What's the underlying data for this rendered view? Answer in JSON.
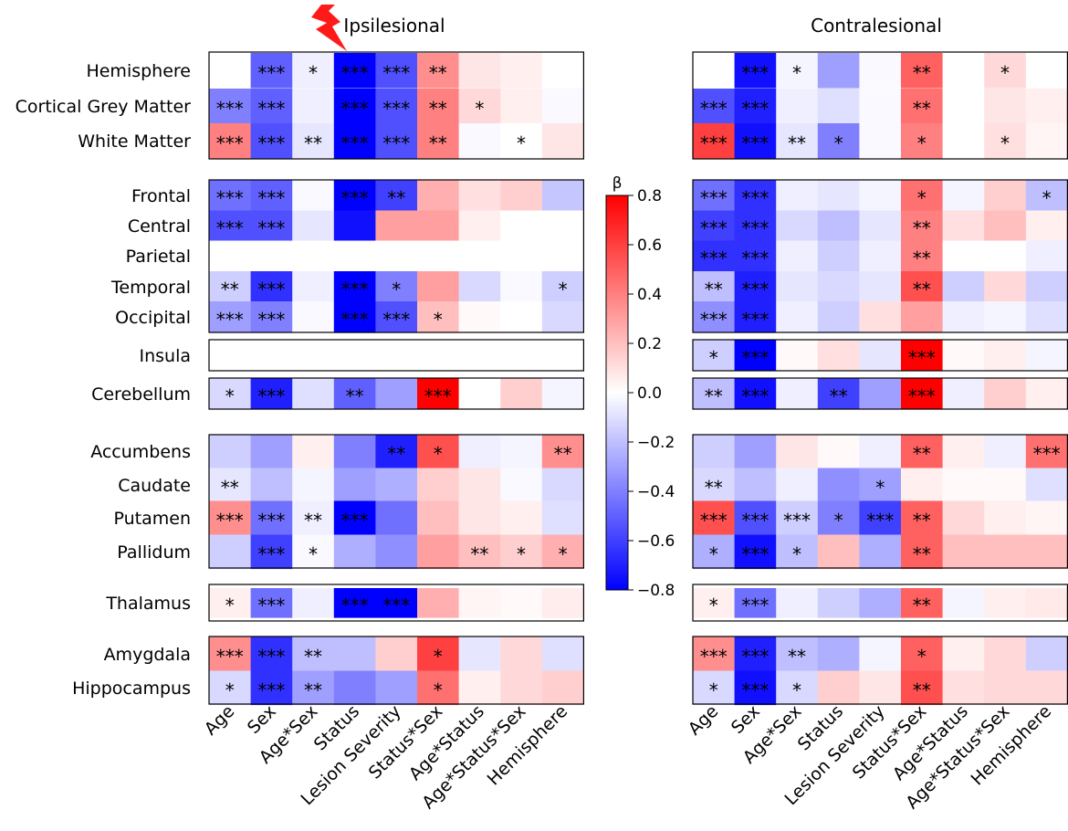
{
  "chart_data": {
    "type": "heatmap",
    "colorbar": {
      "label": "β",
      "min": -0.8,
      "max": 0.8,
      "ticks": [
        0.8,
        0.6,
        0.4,
        0.2,
        0.0,
        -0.2,
        -0.4,
        -0.6,
        -0.8
      ],
      "tick_labels": [
        "0.8",
        "0.6",
        "0.4",
        "0.2",
        "0.0",
        "−0.2",
        "−0.4",
        "−0.6",
        "−0.8"
      ]
    },
    "columns": [
      "Age",
      "Sex",
      "Age*Sex",
      "Status",
      "Lesion Severity",
      "Status*Sex",
      "Age*Status",
      "Age*Status*Sex",
      "Hemisphere"
    ],
    "rows": [
      "Hemisphere",
      "Cortical Grey Matter",
      "White Matter",
      "Frontal",
      "Central",
      "Parietal",
      "Temporal",
      "Occipital",
      "Insula",
      "Cerebellum",
      "Accumbens",
      "Caudate",
      "Putamen",
      "Pallidum",
      "Thalamus",
      "Amygdala",
      "Hippocampus"
    ],
    "row_groups": [
      [
        "Hemisphere",
        "Cortical Grey Matter",
        "White Matter"
      ],
      [
        "Frontal",
        "Central",
        "Parietal",
        "Temporal",
        "Occipital"
      ],
      [
        "Insula"
      ],
      [
        "Cerebellum"
      ],
      [
        "Accumbens",
        "Caudate",
        "Putamen",
        "Pallidum"
      ],
      [
        "Thalamus"
      ],
      [
        "Amygdala",
        "Hippocampus"
      ]
    ],
    "panels": [
      {
        "title": "Ipsilesional",
        "marker": "lesion-bolt",
        "values": [
          [
            0.0,
            -0.5,
            -0.05,
            -0.8,
            -0.55,
            0.35,
            0.08,
            0.05,
            0.0
          ],
          [
            -0.4,
            -0.5,
            -0.05,
            -0.8,
            -0.55,
            0.4,
            0.12,
            0.05,
            -0.02
          ],
          [
            0.4,
            -0.55,
            -0.08,
            -0.85,
            -0.55,
            0.4,
            -0.02,
            0.0,
            0.08
          ],
          [
            -0.45,
            -0.5,
            -0.02,
            -0.8,
            -0.6,
            0.25,
            0.1,
            0.15,
            -0.18
          ],
          [
            -0.55,
            -0.55,
            -0.08,
            -0.75,
            0.3,
            0.3,
            0.05,
            0.0,
            0.0
          ],
          [
            0.0,
            0.0,
            0.0,
            0.0,
            0.0,
            0.0,
            0.0,
            0.0,
            0.0
          ],
          [
            -0.15,
            -0.65,
            -0.05,
            -0.85,
            -0.4,
            0.3,
            -0.12,
            -0.02,
            -0.15
          ],
          [
            -0.3,
            -0.4,
            -0.02,
            -0.85,
            -0.55,
            0.2,
            0.02,
            0.0,
            -0.12
          ],
          [
            0.0,
            0.0,
            0.0,
            0.0,
            0.0,
            0.0,
            0.0,
            0.0,
            0.0
          ],
          [
            -0.12,
            -0.7,
            -0.1,
            -0.5,
            -0.3,
            0.85,
            0.0,
            0.15,
            -0.03
          ],
          [
            -0.15,
            -0.3,
            0.05,
            -0.4,
            -0.7,
            0.55,
            -0.05,
            -0.03,
            0.35
          ],
          [
            -0.08,
            -0.2,
            -0.03,
            -0.3,
            -0.25,
            0.15,
            0.08,
            -0.02,
            -0.12
          ],
          [
            0.35,
            -0.45,
            -0.05,
            -0.85,
            -0.45,
            0.2,
            0.08,
            0.05,
            -0.1
          ],
          [
            -0.15,
            -0.6,
            -0.02,
            -0.25,
            -0.35,
            0.3,
            0.2,
            0.15,
            0.25
          ],
          [
            0.05,
            -0.45,
            -0.05,
            -0.85,
            -0.8,
            0.25,
            0.03,
            0.02,
            0.06
          ],
          [
            0.35,
            -0.65,
            -0.2,
            -0.2,
            0.15,
            0.6,
            -0.08,
            0.12,
            -0.1
          ],
          [
            -0.12,
            -0.65,
            -0.3,
            -0.4,
            -0.3,
            0.45,
            0.05,
            0.12,
            0.15
          ]
        ],
        "stars": [
          [
            "",
            "***",
            "*",
            "***",
            "***",
            "**",
            "",
            "",
            ""
          ],
          [
            "***",
            "***",
            "",
            "***",
            "***",
            "**",
            "*",
            "",
            ""
          ],
          [
            "***",
            "***",
            "**",
            "***",
            "***",
            "**",
            "",
            "*",
            ""
          ],
          [
            "***",
            "***",
            "",
            "***",
            "**",
            "",
            "",
            "",
            ""
          ],
          [
            "***",
            "***",
            "",
            "",
            "",
            "",
            "",
            "",
            ""
          ],
          [
            "",
            "",
            "",
            "",
            "",
            "",
            "",
            "",
            ""
          ],
          [
            "**",
            "***",
            "",
            "***",
            "*",
            "",
            "",
            "",
            "*"
          ],
          [
            "***",
            "***",
            "",
            "***",
            "***",
            "*",
            "",
            "",
            ""
          ],
          [
            "",
            "",
            "",
            "",
            "",
            "",
            "",
            "",
            ""
          ],
          [
            "*",
            "***",
            "",
            "**",
            "",
            "***",
            "",
            "",
            ""
          ],
          [
            "",
            "",
            "",
            "",
            "**",
            "*",
            "",
            "",
            "**"
          ],
          [
            "**",
            "",
            "",
            "",
            "",
            "",
            "",
            "",
            ""
          ],
          [
            "***",
            "***",
            "**",
            "***",
            "",
            "",
            "",
            "",
            ""
          ],
          [
            "",
            "***",
            "*",
            "",
            "",
            "",
            "**",
            "*",
            "*"
          ],
          [
            "*",
            "***",
            "",
            "***",
            "***",
            "",
            "",
            "",
            ""
          ],
          [
            "***",
            "***",
            "**",
            "",
            "",
            "*",
            "",
            "",
            ""
          ],
          [
            "*",
            "***",
            "**",
            "",
            "",
            "*",
            "",
            "",
            ""
          ]
        ]
      },
      {
        "title": "Contralesional",
        "values": [
          [
            0.0,
            -0.75,
            -0.03,
            -0.3,
            -0.02,
            0.5,
            0.0,
            0.12,
            0.0
          ],
          [
            -0.55,
            -0.7,
            -0.05,
            -0.1,
            -0.02,
            0.45,
            0.0,
            0.08,
            0.05
          ],
          [
            0.6,
            -0.75,
            -0.08,
            -0.4,
            -0.02,
            0.4,
            0.0,
            0.1,
            0.03
          ],
          [
            -0.45,
            -0.65,
            -0.05,
            -0.08,
            -0.03,
            0.45,
            -0.03,
            0.15,
            -0.2
          ],
          [
            -0.6,
            -0.65,
            -0.12,
            -0.2,
            -0.08,
            0.4,
            0.1,
            0.2,
            0.05
          ],
          [
            -0.65,
            -0.65,
            -0.05,
            -0.15,
            -0.05,
            0.4,
            0.0,
            0.0,
            -0.05
          ],
          [
            -0.2,
            -0.7,
            -0.08,
            -0.12,
            -0.08,
            0.55,
            -0.15,
            0.12,
            -0.15
          ],
          [
            -0.35,
            -0.7,
            -0.05,
            -0.15,
            0.1,
            0.3,
            -0.05,
            -0.03,
            -0.1
          ],
          [
            -0.15,
            -0.8,
            0.02,
            0.1,
            -0.08,
            0.95,
            0.02,
            0.05,
            -0.03
          ],
          [
            -0.2,
            -0.75,
            -0.05,
            -0.6,
            -0.3,
            0.8,
            -0.05,
            0.15,
            0.05
          ],
          [
            -0.15,
            -0.3,
            0.08,
            0.02,
            -0.05,
            0.5,
            0.05,
            -0.05,
            0.45
          ],
          [
            -0.12,
            -0.2,
            -0.05,
            -0.35,
            -0.3,
            0.05,
            0.02,
            0.02,
            -0.1
          ],
          [
            0.55,
            -0.55,
            -0.15,
            -0.4,
            -0.6,
            0.5,
            0.12,
            0.05,
            0.03
          ],
          [
            -0.25,
            -0.75,
            -0.2,
            0.2,
            -0.25,
            0.5,
            0.2,
            0.2,
            0.2
          ],
          [
            0.05,
            -0.45,
            -0.05,
            -0.15,
            -0.25,
            0.5,
            -0.03,
            0.05,
            0.07
          ],
          [
            0.35,
            -0.7,
            -0.2,
            -0.25,
            -0.03,
            0.5,
            0.05,
            0.12,
            -0.15
          ],
          [
            -0.12,
            -0.75,
            -0.12,
            0.15,
            0.08,
            0.55,
            0.1,
            0.12,
            0.12
          ]
        ],
        "stars": [
          [
            "",
            "***",
            "*",
            "",
            "",
            "**",
            "",
            "*",
            ""
          ],
          [
            "***",
            "***",
            "",
            "",
            "",
            "**",
            "",
            "",
            ""
          ],
          [
            "***",
            "***",
            "**",
            "*",
            "",
            "*",
            "",
            "*",
            ""
          ],
          [
            "***",
            "***",
            "",
            "",
            "",
            "*",
            "",
            "",
            "*"
          ],
          [
            "***",
            "***",
            "",
            "",
            "",
            "**",
            "",
            "",
            ""
          ],
          [
            "***",
            "***",
            "",
            "",
            "",
            "**",
            "",
            "",
            ""
          ],
          [
            "**",
            "***",
            "",
            "",
            "",
            "**",
            "",
            "",
            ""
          ],
          [
            "***",
            "***",
            "",
            "",
            "",
            "",
            "",
            "",
            ""
          ],
          [
            "*",
            "***",
            "",
            "",
            "",
            "***",
            "",
            "",
            ""
          ],
          [
            "**",
            "***",
            "",
            "**",
            "",
            "***",
            "",
            "",
            ""
          ],
          [
            "",
            "",
            "",
            "",
            "",
            "**",
            "",
            "",
            "***"
          ],
          [
            "**",
            "",
            "",
            "",
            "*",
            "",
            "",
            "",
            ""
          ],
          [
            "***",
            "***",
            "***",
            "*",
            "***",
            "**",
            "",
            "",
            ""
          ],
          [
            "*",
            "***",
            "*",
            "",
            "",
            "**",
            "",
            "",
            ""
          ],
          [
            "*",
            "***",
            "",
            "",
            "",
            "**",
            "",
            "",
            ""
          ],
          [
            "***",
            "***",
            "**",
            "",
            "",
            "*",
            "",
            "",
            ""
          ],
          [
            "*",
            "***",
            "*",
            "",
            "",
            "**",
            "",
            "",
            ""
          ]
        ]
      }
    ]
  }
}
